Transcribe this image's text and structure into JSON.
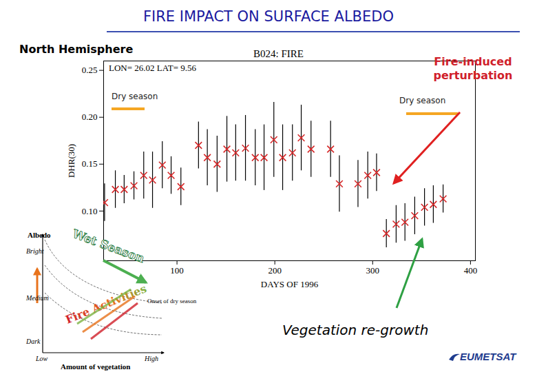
{
  "chart_data": {
    "type": "scatter",
    "title": "B024: FIRE",
    "subtitle": "LON= 26.02 LAT= 9.56",
    "x_label": "DAYS OF 1996",
    "y_label": "DHR(30)",
    "x": [
      26,
      37,
      46,
      56,
      66,
      75,
      85,
      94,
      104,
      122,
      131,
      141,
      151,
      160,
      170,
      180,
      189,
      199,
      208,
      218,
      227,
      237,
      257,
      266,
      285,
      295,
      304,
      314,
      324,
      333,
      343,
      353,
      362,
      372
    ],
    "values": [
      0.109,
      0.123,
      0.123,
      0.127,
      0.138,
      0.133,
      0.149,
      0.138,
      0.126,
      0.17,
      0.157,
      0.15,
      0.166,
      0.162,
      0.167,
      0.157,
      0.157,
      0.176,
      0.157,
      0.162,
      0.178,
      0.166,
      0.166,
      0.129,
      0.129,
      0.138,
      0.141,
      0.076,
      0.086,
      0.088,
      0.095,
      0.104,
      0.107,
      0.113
    ],
    "errors": [
      0.02,
      0.02,
      0.015,
      0.015,
      0.025,
      0.03,
      0.025,
      0.02,
      0.02,
      0.025,
      0.03,
      0.03,
      0.035,
      0.03,
      0.035,
      0.03,
      0.035,
      0.04,
      0.035,
      0.03,
      0.035,
      0.03,
      0.03,
      0.03,
      0.025,
      0.025,
      0.02,
      0.015,
      0.02,
      0.02,
      0.02,
      0.02,
      0.02,
      0.015
    ],
    "color": "#d62728",
    "marker": "x",
    "xlim": [
      25,
      405
    ],
    "xticks": [
      100,
      200,
      300,
      400
    ],
    "ylim": [
      0.047,
      0.26
    ],
    "yticks": [
      {
        "value": 0.1,
        "label": "0.10"
      },
      0.15,
      {
        "value": 0.2,
        "label": "0.20"
      },
      0.25
    ],
    "grid": false
  },
  "slide": {
    "heading": "FIRE IMPACT ON SURFACE ALBEDO",
    "region": "North Hemisphere",
    "annotations": {
      "dry_season_left": "Dry season",
      "dry_season_right": "Dry season",
      "perturbation": "Fire-induced perturbation",
      "regrowth": "Vegetation re-growth"
    },
    "inset": {
      "y_label": "Albedo",
      "y_levels": [
        "Bright",
        "Medium",
        "Dark"
      ],
      "x_label": "Amount of vegetation",
      "x_levels": [
        "Low",
        "High"
      ],
      "wet": "Wet Season",
      "fire": "Fire Activities",
      "onset": "Onset of dry season"
    },
    "logo": "EUMETSAT"
  }
}
